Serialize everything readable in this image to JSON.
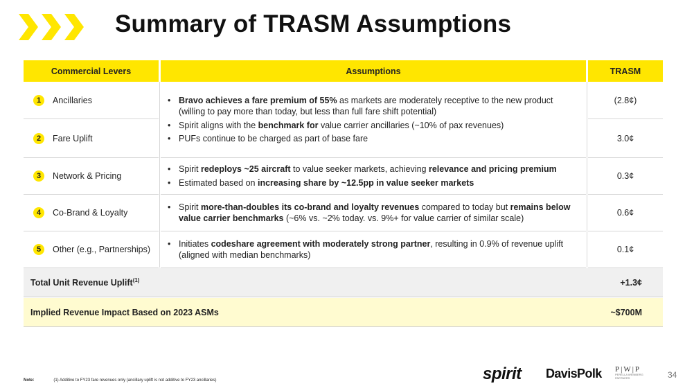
{
  "title": "Summary of TRASM Assumptions",
  "header": {
    "col1": "Commercial Levers",
    "col2": "Assumptions",
    "col3": "TRASM"
  },
  "levers": [
    {
      "num": "1",
      "label": "Ancillaries",
      "value": "(2.8¢)"
    },
    {
      "num": "2",
      "label": "Fare Uplift",
      "value": "3.0¢"
    },
    {
      "num": "3",
      "label": "Network & Pricing",
      "value": "0.3¢"
    },
    {
      "num": "4",
      "label": "Co-Brand & Loyalty",
      "value": "0.6¢"
    },
    {
      "num": "5",
      "label": "Other (e.g., Partnerships)",
      "value": "0.1¢"
    }
  ],
  "assumptions": {
    "a1": {
      "b1": "Bravo achieves a fare premium of 55%",
      "t1": " as markets are moderately receptive to the new product (willing to pay more than today, but less than full fare shift potential)"
    },
    "a2": {
      "t1": "Spirit aligns with the ",
      "b1": "benchmark for",
      "t2": " value carrier ancillaries (~10% of pax revenues)"
    },
    "a3": {
      "t1": "PUFs continue to be charged as part of base fare"
    },
    "b1": {
      "t1": "Spirit ",
      "b1": "redeploys ~25 aircraft",
      "t2": " to value seeker markets, achieving ",
      "b2": "relevance and pricing premium"
    },
    "b2": {
      "t1": "Estimated based on ",
      "b1": "increasing share by ~12.5pp in value seeker markets"
    },
    "c1": {
      "t1": "Spirit ",
      "b1": "more-than-doubles its co-brand and loyalty revenues",
      "t2": " compared to today but ",
      "b2": "remains below value carrier benchmarks",
      "t3": " (~6% vs. ~2% today. vs. 9%+ for value carrier of similar scale)"
    },
    "d1": {
      "t1": "Initiates ",
      "b1": "codeshare agreement with moderately strong partner",
      "t2": ", resulting in 0.9% of revenue uplift (aligned with median benchmarks)"
    }
  },
  "total": {
    "label": "Total Unit Revenue Uplift",
    "sup": "(1)",
    "value": "+1.3¢"
  },
  "impact": {
    "label": "Implied Revenue Impact Based on 2023 ASMs",
    "value": "~$700M"
  },
  "note": {
    "label": "Note:",
    "text": "(1) Additive to FY23 fare revenues only (ancillary uplift is not additive to FY23 ancillaries)"
  },
  "logos": {
    "spirit": "spirit",
    "davis": "DavisPolk",
    "pwp": "P|W|P",
    "pwp_sub": "PERELLA WEINBERG PARTNERS"
  },
  "page_number": "34",
  "colors": {
    "accent": "#ffe600",
    "total_bg": "#f0f0f0",
    "impact_bg": "#fffbd0"
  },
  "icons": {
    "chevrons": "triple-chevron-right-icon"
  }
}
